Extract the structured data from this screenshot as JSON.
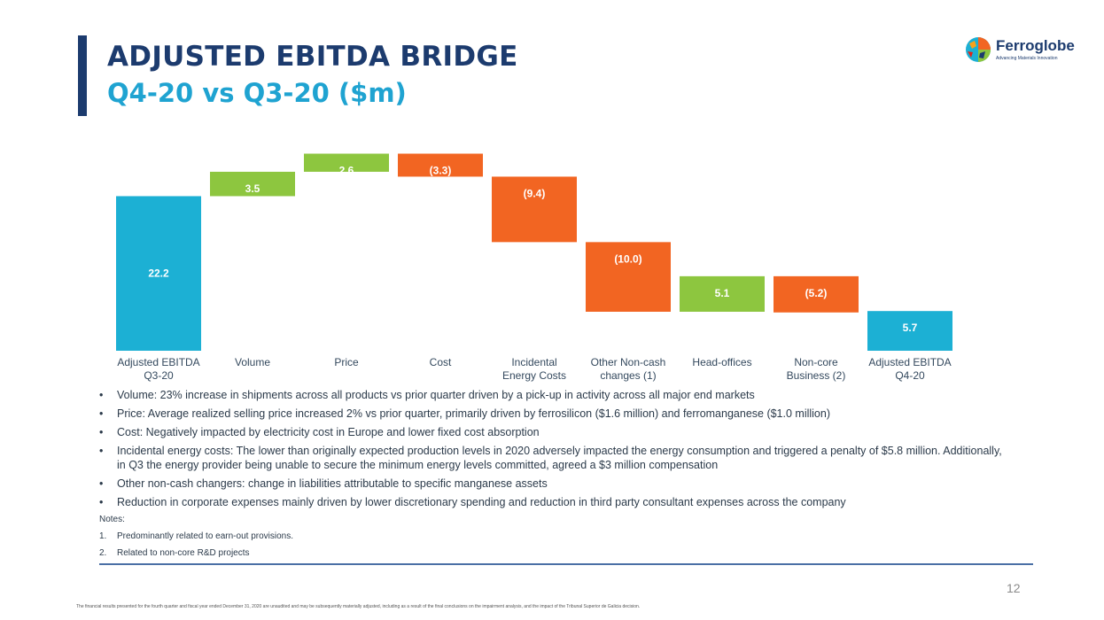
{
  "title": "ADJUSTED EBITDA BRIDGE",
  "subtitle": "Q4-20 vs Q3-20 ($m)",
  "logo": {
    "name": "Ferroglobe",
    "tagline": "Advancing Materials Innovation"
  },
  "colors": {
    "total": "#1cb0d4",
    "increase": "#8dc63f",
    "decrease": "#f26522",
    "title": "#1c3b6e",
    "subtitle": "#1fa3d1"
  },
  "chart_data": {
    "type": "waterfall",
    "title": "ADJUSTED EBITDA BRIDGE Q4-20 vs Q3-20 ($m)",
    "unit": "$m",
    "categories": [
      [
        "Adjusted EBITDA",
        "Q3-20"
      ],
      [
        "Volume"
      ],
      [
        "Price"
      ],
      [
        "Cost"
      ],
      [
        "Incidental",
        "Energy Costs"
      ],
      [
        "Other Non-cash",
        "changes (1)"
      ],
      [
        "Head-offices"
      ],
      [
        "Non-core",
        "Business (2)"
      ],
      [
        "Adjusted EBITDA",
        "Q4-20"
      ]
    ],
    "values": [
      22.2,
      3.5,
      2.6,
      -3.3,
      -9.4,
      -10.0,
      5.1,
      -5.2,
      5.7
    ],
    "kinds": [
      "total",
      "increase",
      "increase",
      "decrease",
      "decrease",
      "decrease",
      "increase",
      "decrease",
      "total"
    ],
    "labels": [
      "22.2",
      "3.5",
      "2.6",
      "(3.3)",
      "(9.4)",
      "(10.0)",
      "5.1",
      "(5.2)",
      "5.7"
    ],
    "ylim": [
      0,
      29
    ]
  },
  "bullets": [
    "Volume: 23% increase in shipments across all products vs prior quarter driven by a pick-up in activity across all major end markets",
    "Price:  Average realized selling price increased 2% vs prior quarter, primarily driven by ferrosilicon ($1.6 million) and ferromanganese ($1.0 million)",
    "Cost: Negatively impacted by electricity cost in Europe and lower fixed cost absorption",
    "Incidental energy costs: The lower than originally expected production levels in 2020 adversely impacted the energy consumption and triggered a penalty of $5.8 million. Additionally, in Q3 the energy provider being unable to secure the minimum energy levels committed, agreed a $3 million compensation",
    "Other non-cash changers: change in liabilities attributable to specific manganese assets",
    "Reduction in corporate expenses mainly driven by lower discretionary spending and reduction in third party consultant expenses across the company"
  ],
  "bullet_symbol": "•",
  "notes_title": "Notes:",
  "notes": [
    {
      "num": "1.",
      "text": "Predominantly related to earn-out provisions."
    },
    {
      "num": "2.",
      "text": "Related to non-core R&D projects"
    }
  ],
  "page_number": "12",
  "disclaimer": "The financial results presented for the fourth quarter and fiscal year ended December 31, 2020 are unaudited and may be subsequently materially adjusted, including as a result of the final conclusions on the impairment analysis, and the impact of the Tribunal Superior de Galicia decision."
}
